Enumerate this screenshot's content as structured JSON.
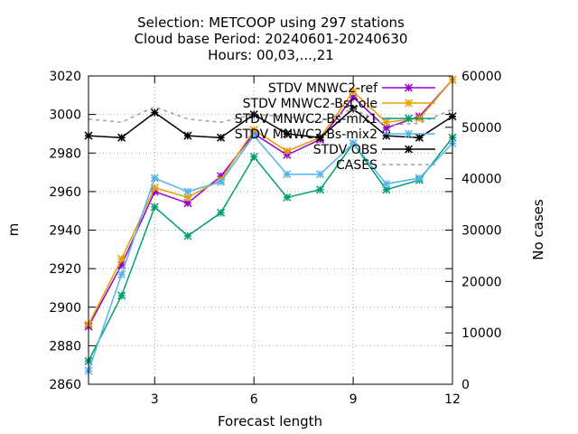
{
  "chart_data": {
    "type": "line",
    "title_lines": [
      "Selection: METCOOP using   297 stations",
      "Cloud base   Period: 20240601-20240630",
      "Hours: 00,03,...,21"
    ],
    "xlabel": "Forecast length",
    "ylabel": "m",
    "y2label": "No cases",
    "xlim": [
      1,
      12
    ],
    "xticks": [
      3,
      6,
      9,
      12
    ],
    "ylim": [
      2860,
      3020
    ],
    "yticks": [
      2860,
      2880,
      2900,
      2920,
      2940,
      2960,
      2980,
      3000,
      3020
    ],
    "y2lim": [
      0,
      60000
    ],
    "y2ticks": [
      0,
      10000,
      20000,
      30000,
      40000,
      50000,
      60000
    ],
    "grid": true,
    "legend_position": "top-right",
    "x": [
      1,
      2,
      3,
      4,
      5,
      6,
      7,
      8,
      9,
      10,
      11,
      12
    ],
    "series": [
      {
        "name": "STDV MNWC2-ref",
        "color": "#9400d3",
        "axis": "y",
        "dash": false,
        "values": [
          2890,
          2922,
          2960,
          2954,
          2968,
          2990,
          2979,
          2987,
          3009,
          2993,
          2999,
          3018
        ]
      },
      {
        "name": "STDV MNWC2-BsCole",
        "color": "#e69f00",
        "axis": "y",
        "dash": false,
        "values": [
          2891,
          2925,
          2962,
          2957,
          2966,
          2992,
          2981,
          2988,
          3012,
          2996,
          2998,
          3018
        ]
      },
      {
        "name": "STDV MNWC2-Bs-mix1",
        "color": "#009e73",
        "axis": "y",
        "dash": false,
        "values": [
          2872,
          2906,
          2952,
          2937,
          2949,
          2978,
          2957,
          2961,
          2985,
          2961,
          2966,
          2988
        ]
      },
      {
        "name": "STDV MNWC2-Bs-mix2",
        "color": "#56b4e9",
        "axis": "y",
        "dash": false,
        "values": [
          2867,
          2917,
          2967,
          2960,
          2965,
          2989,
          2969,
          2969,
          2985,
          2964,
          2967,
          2985
        ]
      },
      {
        "name": "STDV OBS",
        "color": "#000000",
        "axis": "y",
        "dash": false,
        "values": [
          2989,
          2988,
          3001,
          2989,
          2988,
          3000,
          2990,
          2988,
          3003,
          2989,
          2988,
          2999
        ]
      },
      {
        "name": "CASES",
        "color": "#a0a0a0",
        "axis": "y2",
        "dash": true,
        "values": [
          51600,
          51000,
          54000,
          51600,
          51000,
          52500,
          52100,
          51000,
          53600,
          50400,
          50800,
          53500
        ]
      }
    ]
  }
}
